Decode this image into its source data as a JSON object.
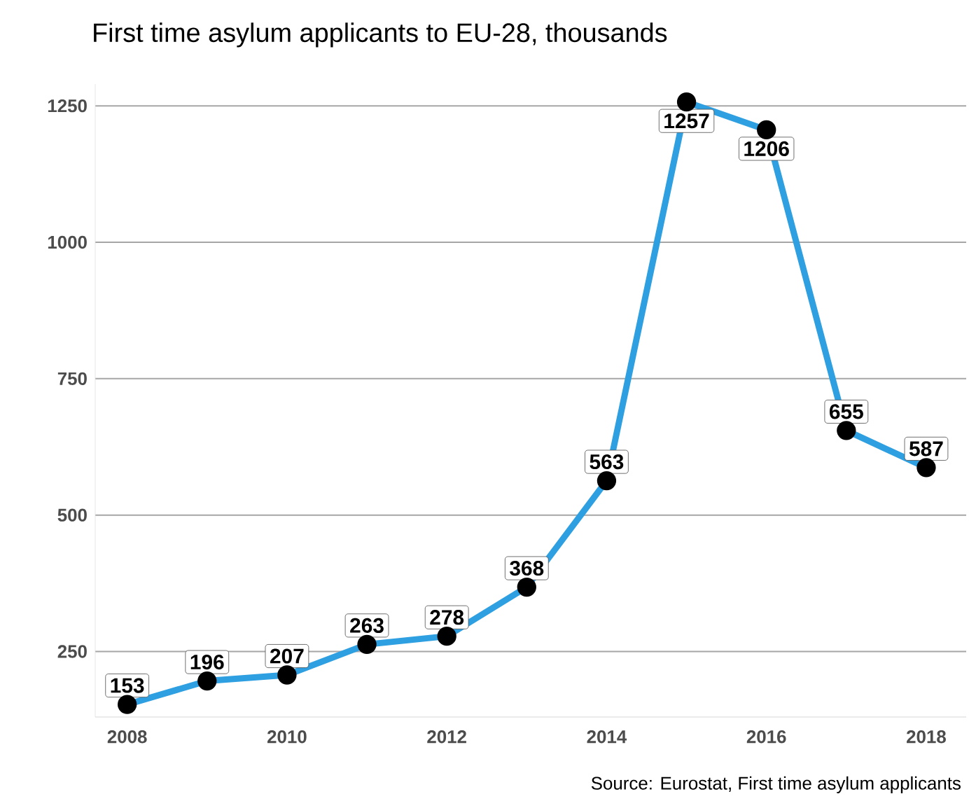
{
  "chart_data": {
    "type": "line",
    "title": "First time asylum applicants to EU-28, thousands",
    "x": [
      2008,
      2009,
      2010,
      2011,
      2012,
      2013,
      2014,
      2015,
      2016,
      2017,
      2018
    ],
    "values": [
      153,
      196,
      207,
      263,
      278,
      368,
      563,
      1257,
      1206,
      655,
      587
    ],
    "color": "#2e9fe0",
    "marker": "circle",
    "data_labels": true,
    "grid": "y",
    "xlim": [
      2007.6,
      2018.5
    ],
    "xticks": [
      2008,
      2010,
      2012,
      2014,
      2016,
      2018
    ],
    "ylim": [
      130,
      1290
    ],
    "yticks": [
      250,
      500,
      750,
      1000,
      1250
    ],
    "annotations": [
      "Source: Eurostat, First time asylum applicants"
    ]
  }
}
